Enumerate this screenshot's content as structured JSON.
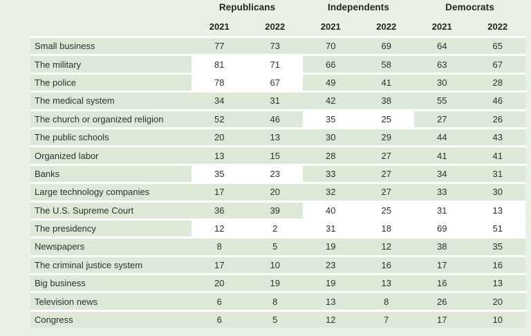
{
  "chart_data": {
    "type": "table",
    "title": "",
    "column_groups": [
      {
        "label": "Republicans",
        "years": [
          "2021",
          "2022"
        ]
      },
      {
        "label": "Independents",
        "years": [
          "2021",
          "2022"
        ]
      },
      {
        "label": "Democrats",
        "years": [
          "2021",
          "2022"
        ]
      }
    ],
    "rows": [
      {
        "label": "Small business",
        "values": [
          77,
          73,
          70,
          69,
          64,
          65
        ],
        "highlighted_groups": []
      },
      {
        "label": "The military",
        "values": [
          81,
          71,
          66,
          58,
          63,
          67
        ],
        "highlighted_groups": [
          "republicans"
        ]
      },
      {
        "label": "The police",
        "values": [
          78,
          67,
          49,
          41,
          30,
          28
        ],
        "highlighted_groups": [
          "republicans"
        ]
      },
      {
        "label": "The medical system",
        "values": [
          34,
          31,
          42,
          38,
          55,
          46
        ],
        "highlighted_groups": []
      },
      {
        "label": "The church or organized religion",
        "values": [
          52,
          46,
          35,
          25,
          27,
          26
        ],
        "highlighted_groups": [
          "independents"
        ]
      },
      {
        "label": "The public schools",
        "values": [
          20,
          13,
          30,
          29,
          44,
          43
        ],
        "highlighted_groups": []
      },
      {
        "label": "Organized labor",
        "values": [
          13,
          15,
          28,
          27,
          41,
          41
        ],
        "highlighted_groups": []
      },
      {
        "label": "Banks",
        "values": [
          35,
          23,
          33,
          27,
          34,
          31
        ],
        "highlighted_groups": [
          "republicans"
        ]
      },
      {
        "label": "Large technology companies",
        "values": [
          17,
          20,
          32,
          27,
          33,
          30
        ],
        "highlighted_groups": []
      },
      {
        "label": "The U.S. Supreme Court",
        "values": [
          36,
          39,
          40,
          25,
          31,
          13
        ],
        "highlighted_groups": [
          "independents",
          "democrats"
        ]
      },
      {
        "label": "The presidency",
        "values": [
          12,
          2,
          31,
          18,
          69,
          51
        ],
        "highlighted_groups": [
          "republicans",
          "independents",
          "democrats"
        ]
      },
      {
        "label": "Newspapers",
        "values": [
          8,
          5,
          19,
          12,
          38,
          35
        ],
        "highlighted_groups": []
      },
      {
        "label": "The criminal justice system",
        "values": [
          17,
          10,
          23,
          16,
          17,
          16
        ],
        "highlighted_groups": []
      },
      {
        "label": "Big business",
        "values": [
          20,
          19,
          19,
          13,
          16,
          13
        ],
        "highlighted_groups": []
      },
      {
        "label": "Television news",
        "values": [
          6,
          8,
          13,
          8,
          26,
          20
        ],
        "highlighted_groups": []
      },
      {
        "label": "Congress",
        "values": [
          6,
          5,
          12,
          7,
          17,
          10
        ],
        "highlighted_groups": []
      }
    ],
    "layout_hints": {
      "highlight_style": "white cell background on otherwise green row bands",
      "grid": "white horizontal separators between rows",
      "legend_position": "none"
    }
  },
  "colors": {
    "page_background": "#e7f0e2",
    "row_band_green": "#dbe9d6",
    "highlight_white": "#ffffff",
    "text_dark": "#1d241f"
  }
}
